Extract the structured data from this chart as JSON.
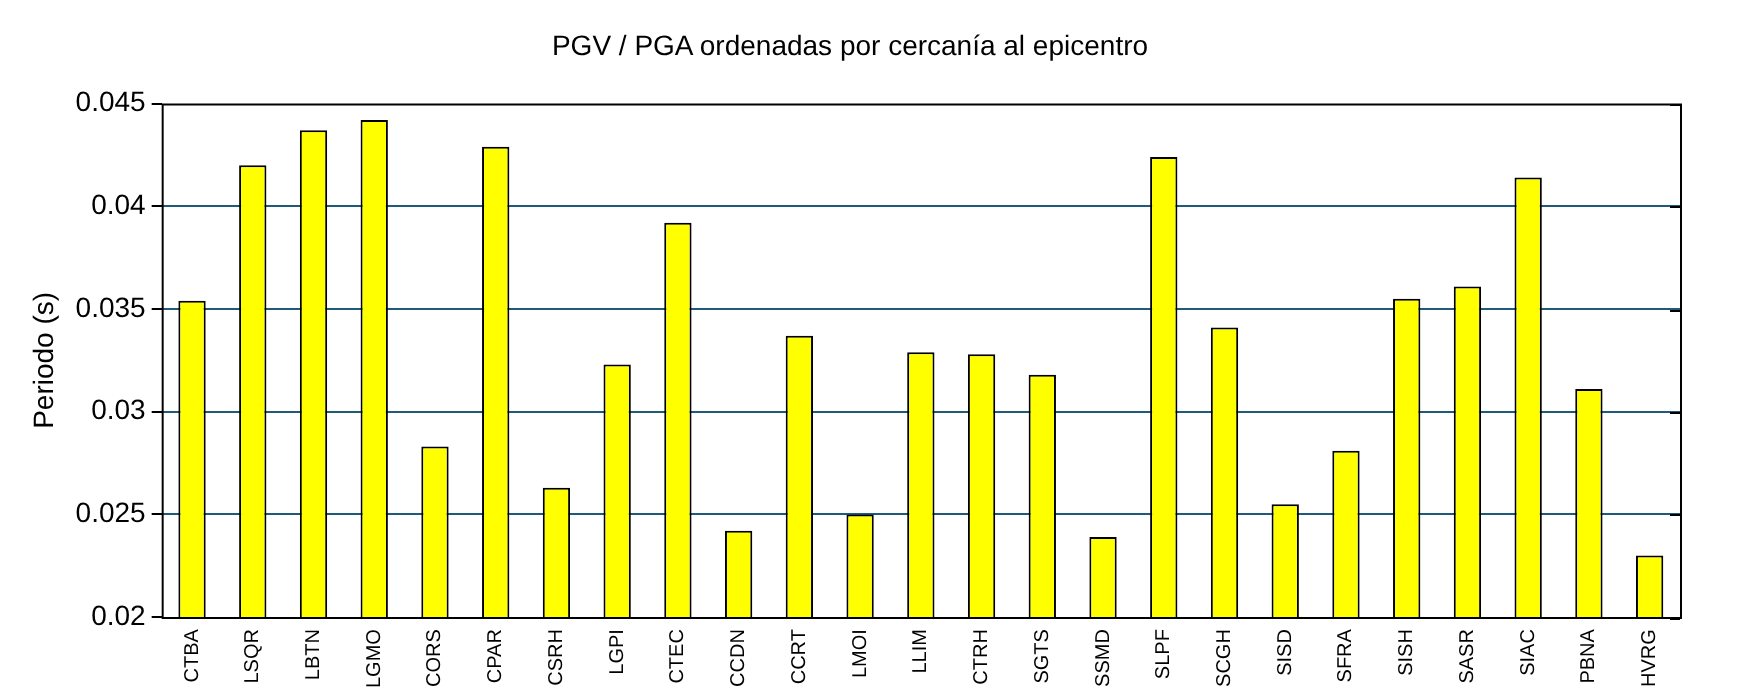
{
  "chart_data": {
    "type": "bar",
    "title": "PGV / PGA ordenadas por cercanía al epicentro",
    "ylabel": "Periodo (s)",
    "categories": [
      "CTBA",
      "LSQR",
      "LBTN",
      "LGMO",
      "CORS",
      "CPAR",
      "CSRH",
      "LGPI",
      "CTEC",
      "CCDN",
      "CCRT",
      "LMOI",
      "LLIM",
      "CTRH",
      "SGTS",
      "SSMD",
      "SLPF",
      "SCGH",
      "SISD",
      "SFRA",
      "SISH",
      "SASR",
      "SIAC",
      "PBNA",
      "HVRG"
    ],
    "values": [
      0.0354,
      0.042,
      0.0437,
      0.0442,
      0.0283,
      0.0429,
      0.0263,
      0.0323,
      0.0392,
      0.0242,
      0.0337,
      0.025,
      0.0329,
      0.0328,
      0.0318,
      0.0239,
      0.0424,
      0.0341,
      0.0255,
      0.0281,
      0.0355,
      0.0361,
      0.0414,
      0.0311,
      0.023
    ],
    "color": "#ffff00",
    "ylim": [
      0.02,
      0.045
    ],
    "yticks": [
      0.02,
      0.025,
      0.03,
      0.035,
      0.04,
      0.045
    ],
    "grid": "y",
    "legend": false
  }
}
